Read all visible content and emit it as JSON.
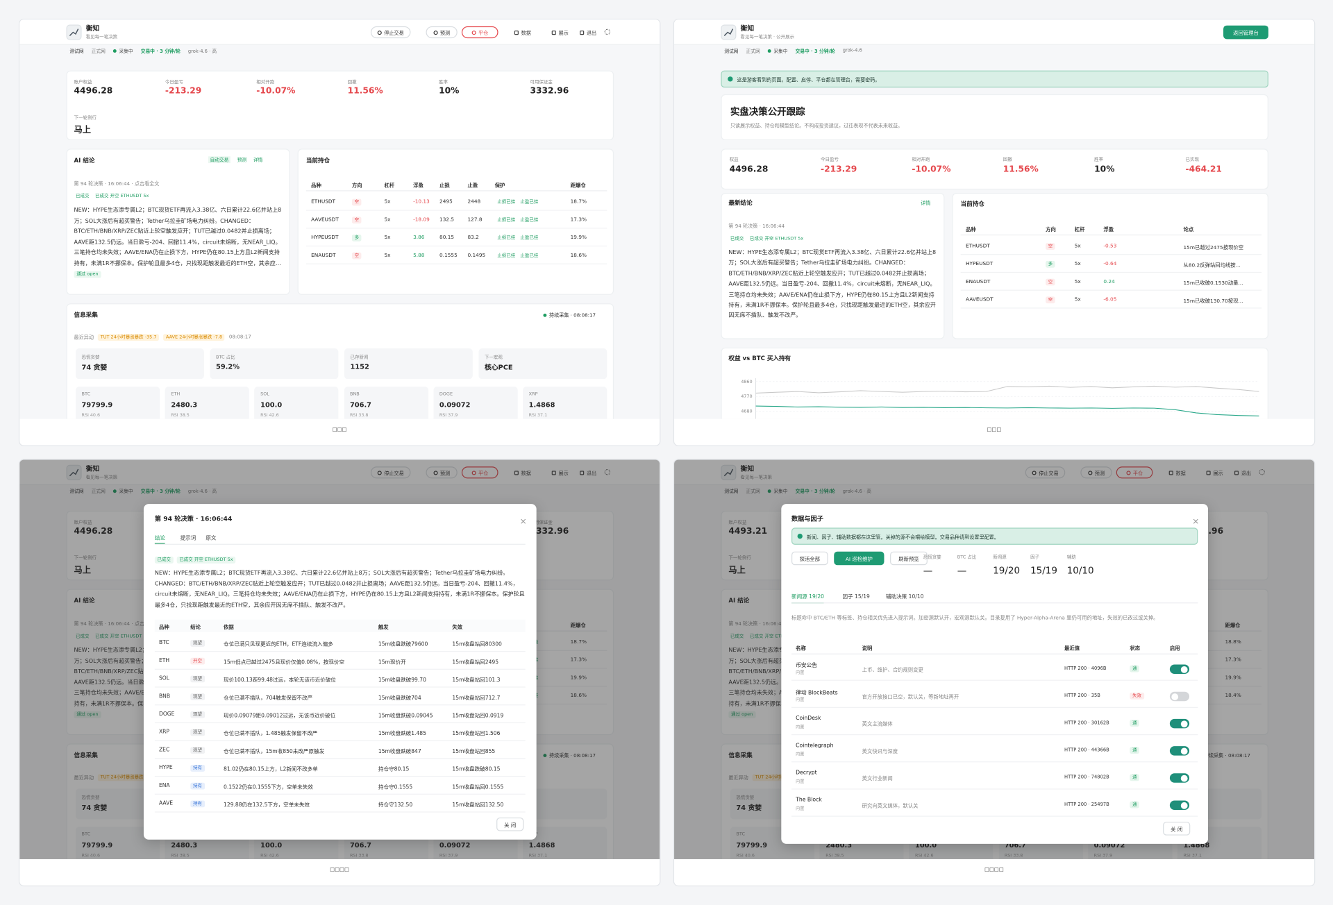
{
  "captions": [
    "□□□",
    "□□□",
    "□□□□",
    "□□□□"
  ],
  "dashboard": {
    "brand": {
      "name": "衡知",
      "tagline": "看见每一笔决策"
    },
    "nav": {
      "stop": "停止交易",
      "predict": "预测",
      "close": "平仓",
      "data": "数据",
      "show": "展示",
      "exit": "退出"
    },
    "status": {
      "testnet": "测试网",
      "mainnet": "正式网",
      "collecting": "采集中",
      "trading": "交易中 · 3 分钟/轮",
      "model": "grok-4.6 · 高"
    },
    "stats": [
      {
        "label": "账户权益",
        "value": "4496.28"
      },
      {
        "label": "今日盈亏",
        "value": "-213.29",
        "down": true
      },
      {
        "label": "相对开跑",
        "value": "-10.07%",
        "down": true
      },
      {
        "label": "回撤",
        "value": "11.56%",
        "down": true
      },
      {
        "label": "胜率",
        "value": "10%"
      },
      {
        "label": "可用保证金",
        "value": "3332.96"
      }
    ],
    "next": {
      "label": "下一轮例行",
      "value": "马上"
    },
    "ai": {
      "title": "AI 结论",
      "links": [
        "自动交易",
        "预测",
        "详情"
      ],
      "meta": "第 94 轮决策 · 16:06:44 · 点击看全文",
      "tags": [
        "已成交",
        "已成交 开空 ETHUSDT 5x"
      ],
      "text": "NEW：HYPE生态添专属L2；BTC现货ETF再流入3.38亿、六日累计22.6亿并站上8万；SOL大涨后有超买警告；Tether乌拉圭矿场电力纠纷。CHANGED：BTC/ETH/BNB/XRP/ZEC贴近上轮空触发应开；TUT已越过0.0482并止损离场；AAVE距132.5仍远。当日盈亏-204、回撤11.4%，circuit未熔断，无NEAR_LIQ。三笔持仓均未失效；AAVE/ENA仍在止损下方，HYPE仍在80.15上方且L2新闻支持持有，未满1R不挪保本。保护轮且最多4仓，只找现距触发最近的ETH空，其余应开因无席不插队、触发不改严。",
      "badge": "通过 open"
    },
    "positions": {
      "title": "当前持仓",
      "columns": [
        "品种",
        "方向",
        "杠杆",
        "浮盈",
        "止损",
        "止盈",
        "保护",
        "距爆仓"
      ],
      "rows": [
        {
          "symbol": "ETHUSDT",
          "side": "空",
          "short": true,
          "lev": "5x",
          "pnl": "-10.13",
          "sl": "2495",
          "tp": "2448",
          "protect": [
            "止损已挂",
            "止盈已挂"
          ],
          "liq": "18.7%"
        },
        {
          "symbol": "AAVEUSDT",
          "side": "空",
          "short": true,
          "lev": "5x",
          "pnl": "-18.09",
          "sl": "132.5",
          "tp": "127.8",
          "protect": [
            "止损已挂",
            "止盈已挂"
          ],
          "liq": "17.3%"
        },
        {
          "symbol": "HYPEUSDT",
          "side": "多",
          "short": false,
          "lev": "5x",
          "pnl": "3.86",
          "sl": "80.15",
          "tp": "83.2",
          "protect": [
            "止损已挂",
            "止盈已挂"
          ],
          "liq": "19.9%"
        },
        {
          "symbol": "ENAUSDT",
          "side": "空",
          "short": true,
          "lev": "5x",
          "pnl": "5.88",
          "sl": "0.1555",
          "tp": "0.1495",
          "protect": [
            "止损已挂",
            "止盈已挂"
          ],
          "liq": "18.6%"
        }
      ]
    },
    "info": {
      "title": "信息采集",
      "live": "持续采集 · 08:08:17",
      "recent": "最近异动",
      "alerts": [
        "TUT 24小时暴涨暴跌 -35.7",
        "AAVE 24小时暴涨暴跌 -7.8"
      ],
      "alert_time": "08:08:17",
      "cards": [
        {
          "label": "恐慌贪婪",
          "value": "74 贪婪"
        },
        {
          "label": "BTC 占比",
          "value": "59.2%"
        },
        {
          "label": "已存新闻",
          "value": "1152"
        },
        {
          "label": "下一宏观",
          "value": "核心PCE"
        }
      ],
      "coins": [
        {
          "symbol": "BTC",
          "price": "79799.9",
          "rsi": "RSI 40.6"
        },
        {
          "symbol": "ETH",
          "price": "2480.3",
          "rsi": "RSI 38.5"
        },
        {
          "symbol": "SOL",
          "price": "100.0",
          "rsi": "RSI 42.6"
        },
        {
          "symbol": "BNB",
          "price": "706.7",
          "rsi": "RSI 33.8"
        },
        {
          "symbol": "DOGE",
          "price": "0.09072",
          "rsi": "RSI 37.9"
        },
        {
          "symbol": "XRP",
          "price": "1.4868",
          "rsi": "RSI 37.1"
        }
      ]
    }
  },
  "backdrop_b": {
    "equity": "4493.21",
    "liq": [
      "18.8%",
      "17.3%",
      "19.9%",
      "18.4%"
    ]
  },
  "public": {
    "brand": {
      "name": "衡知",
      "tagline": "看见每一笔决策 · 公开展示"
    },
    "back": "返回管理台",
    "status": {
      "testnet": "测试网",
      "mainnet": "正式网",
      "collecting": "采集中",
      "trading": "交易中 · 3 分钟/轮",
      "model": "grok-4.6"
    },
    "notice": "这是游客看到的页面。配置、启停、平仓都在管理台，需要密码。",
    "title": "实盘决策公开跟踪",
    "subtitle": "只读展示权益、持仓和模型结论。不构成投资建议，过往表现不代表未来收益。",
    "stats": [
      {
        "label": "权益",
        "value": "4496.28"
      },
      {
        "label": "今日盈亏",
        "value": "-213.29",
        "down": true
      },
      {
        "label": "相对开跑",
        "value": "-10.07%",
        "down": true
      },
      {
        "label": "回撤",
        "value": "11.56%",
        "down": true
      },
      {
        "label": "胜率",
        "value": "10%"
      },
      {
        "label": "已实现",
        "value": "-464.21",
        "down": true
      }
    ],
    "latest": {
      "title": "最新结论",
      "link": "详情",
      "meta": "第 94 轮决策 · 16:06:44"
    },
    "positions": {
      "title": "当前持仓",
      "columns": [
        "品种",
        "方向",
        "杠杆",
        "浮盈",
        "论点"
      ],
      "rows": [
        {
          "symbol": "ETHUSDT",
          "side": "空",
          "short": true,
          "lev": "5x",
          "pnl": "-0.53",
          "thesis": "15m已越过2475按现价空"
        },
        {
          "symbol": "HYPEUSDT",
          "side": "多",
          "short": false,
          "lev": "5x",
          "pnl": "-0.64",
          "thesis": "从80.2反弹站回均线按..."
        },
        {
          "symbol": "ENAUSDT",
          "side": "空",
          "short": true,
          "lev": "5x",
          "pnl": "0.24",
          "thesis": "15m已收破0.1530动量..."
        },
        {
          "symbol": "AAVEUSDT",
          "side": "空",
          "short": true,
          "lev": "5x",
          "pnl": "-6.05",
          "thesis": "15m已收破130.70按现..."
        }
      ]
    }
  },
  "chart_data": {
    "type": "line",
    "title": "权益 vs BTC 买入持有",
    "ylim": [
      4600,
      4880
    ],
    "yticks": [
      4680,
      4770,
      4860
    ],
    "grid": true,
    "categories": [
      null,
      null,
      null,
      null,
      null,
      null,
      null,
      null,
      null,
      null,
      null,
      null,
      null,
      null,
      null,
      null,
      null,
      null,
      null,
      null,
      null,
      null,
      null,
      null,
      null
    ],
    "series": [
      {
        "color": "#c9c9c9",
        "values": [
          4790,
          4795,
          4800,
          4792,
          4798,
          4805,
          4800,
          4795,
          4800,
          4802,
          4798,
          4800,
          4830,
          4828,
          4832,
          4825,
          4830,
          4822,
          4828,
          4832,
          4826,
          4830,
          4820,
          4812,
          4800
        ]
      },
      {
        "color": "#2aa88a",
        "values": [
          4712,
          4710,
          4706,
          4708,
          4705,
          4704,
          4706,
          4703,
          4704,
          4702,
          4703,
          4701,
          4700,
          4702,
          4700,
          4699,
          4700,
          4698,
          4700,
          4699,
          4690,
          4670,
          4660,
          4655,
          4652
        ]
      }
    ]
  },
  "decision_modal": {
    "title": "第 94 轮决策 · 16:06:44",
    "tabs": [
      "结论",
      "提示词",
      "原文"
    ],
    "columns": [
      "品种",
      "结论",
      "依据",
      "触发",
      "失效"
    ],
    "rows": [
      {
        "symbol": "BTC",
        "verdict": "观望",
        "kind": "watch",
        "basis": "仓位已满只见现更近的ETH，ETF连续流入偏多",
        "trigger": "15m收盘跌破79600",
        "invalid": "15m收盘站回80300"
      },
      {
        "symbol": "ETH",
        "verdict": "开空",
        "kind": "short",
        "basis": "15m低点已越过2475且现价仅偏0.08%，按现价空",
        "trigger": "15m现价开",
        "invalid": "15m收盘站回2495"
      },
      {
        "symbol": "SOL",
        "verdict": "观望",
        "kind": "watch",
        "basis": "现价100.13距99.48过远，本轮无该币近价破位",
        "trigger": "15m收盘跌破99.70",
        "invalid": "15m收盘站回101.3"
      },
      {
        "symbol": "BNB",
        "verdict": "观望",
        "kind": "watch",
        "basis": "仓位已满不插队，704触发保留不改严",
        "trigger": "15m收盘跌破704",
        "invalid": "15m收盘站回712.7"
      },
      {
        "symbol": "DOGE",
        "verdict": "观望",
        "kind": "watch",
        "basis": "现价0.09079距0.09012过远，无该币近价破位",
        "trigger": "15m收盘跌破0.09045",
        "invalid": "15m收盘站回0.0919"
      },
      {
        "symbol": "XRP",
        "verdict": "观望",
        "kind": "watch",
        "basis": "仓位已满不插队，1.485触发保留不改严",
        "trigger": "15m收盘跌破1.485",
        "invalid": "15m收盘站回1.506"
      },
      {
        "symbol": "ZEC",
        "verdict": "观望",
        "kind": "watch",
        "basis": "仓位已满不插队，15m收850未改严原触发",
        "trigger": "15m收盘跌破847",
        "invalid": "15m收盘站回855"
      },
      {
        "symbol": "HYPE",
        "verdict": "持有",
        "kind": "hold",
        "basis": "81.02仍在80.15上方，L2新闻不改多单",
        "trigger": "持仓守80.15",
        "invalid": "15m收盘跌破80.15"
      },
      {
        "symbol": "ENA",
        "verdict": "持有",
        "kind": "hold",
        "basis": "0.1522仍在0.1555下方，空单未失效",
        "trigger": "持仓守0.1555",
        "invalid": "15m收盘站回0.1555"
      },
      {
        "symbol": "AAVE",
        "verdict": "持有",
        "kind": "hold",
        "basis": "129.88仍在132.5下方，空单未失效",
        "trigger": "持仓守132.50",
        "invalid": "15m收盘站回132.50"
      }
    ],
    "close": "关 闭"
  },
  "data_modal": {
    "title": "数据与因子",
    "notice": "新闻、因子、辅助数据都在这里管。关掉的源不会喂给模型。交易品种请到设置里配置。",
    "buttons": [
      "探活全部",
      "AI 巡检维护",
      "刷新预览"
    ],
    "metrics": [
      {
        "label": "恐慌贪婪",
        "value": "—"
      },
      {
        "label": "BTC 占比",
        "value": "—"
      },
      {
        "label": "新闻源",
        "value": "19/20"
      },
      {
        "label": "因子",
        "value": "15/19"
      },
      {
        "label": "辅助",
        "value": "10/10"
      }
    ],
    "tabs": [
      "新闻源 19/20",
      "因子 15/19",
      "辅助决策 10/10"
    ],
    "description": "标题命中 BTC/ETH 等标签、持仓相关优先进入提示词。加密源默认开，宏观源默认关。目录复用了 Hyper-Alpha-Arena 里仍可用的地址，失效的已改过或关掉。",
    "columns": [
      "名称",
      "说明",
      "最近值",
      "状态",
      "启用"
    ],
    "rows": [
      {
        "name": "币安公告",
        "tag": "内置",
        "desc": "上币、维护、合约规则变更",
        "latest": "HTTP 200 · 4096B",
        "status": "通",
        "ok": true,
        "enabled": true
      },
      {
        "name": "律动 BlockBeats",
        "tag": "内置",
        "desc": "官方开放接口已空，默认关，等新地址再开",
        "latest": "HTTP 200 · 35B",
        "status": "失效",
        "ok": false,
        "enabled": false
      },
      {
        "name": "CoinDesk",
        "tag": "内置",
        "desc": "英文主流媒体",
        "latest": "HTTP 200 · 30162B",
        "status": "通",
        "ok": true,
        "enabled": true
      },
      {
        "name": "Cointelegraph",
        "tag": "内置",
        "desc": "英文快讯与深度",
        "latest": "HTTP 200 · 44366B",
        "status": "通",
        "ok": true,
        "enabled": true
      },
      {
        "name": "Decrypt",
        "tag": "内置",
        "desc": "英文行业新闻",
        "latest": "HTTP 200 · 74802B",
        "status": "通",
        "ok": true,
        "enabled": true
      },
      {
        "name": "The Block",
        "tag": "内置",
        "desc": "研究向英文媒体，默认关",
        "latest": "HTTP 200 · 25497B",
        "status": "通",
        "ok": true,
        "enabled": true
      }
    ],
    "close": "关 闭"
  }
}
